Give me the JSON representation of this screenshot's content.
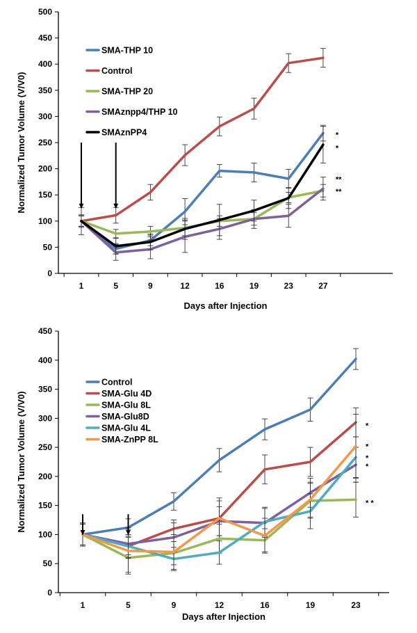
{
  "chart_data": [
    {
      "type": "line",
      "xlabel": "Days after Injection",
      "ylabel": "Normalized Tumor Volume (V/V0)",
      "categories": [
        "1",
        "5",
        "9",
        "12",
        "16",
        "19",
        "23",
        "27"
      ],
      "ylim": [
        0,
        500
      ],
      "yticks": [
        0,
        50,
        100,
        150,
        200,
        250,
        300,
        350,
        400,
        450,
        500
      ],
      "grid": false,
      "legend_position": "upper-left",
      "arrows_at": [
        "1",
        "5"
      ],
      "series": [
        {
          "name": "SMA-THP 10",
          "color": "#4a7ebb",
          "values": [
            100,
            47,
            63,
            118,
            196,
            193,
            181,
            268
          ],
          "errors": [
            10,
            10,
            10,
            25,
            12,
            18,
            18,
            15
          ]
        },
        {
          "name": "Control",
          "color": "#be4b48",
          "values": [
            100,
            111,
            155,
            226,
            281,
            315,
            402,
            412
          ],
          "errors": [
            10,
            15,
            15,
            20,
            18,
            20,
            18,
            18
          ]
        },
        {
          "name": "SMA-THP 20",
          "color": "#98b954",
          "values": [
            100,
            76,
            80,
            87,
            100,
            104,
            145,
            158
          ],
          "errors": [
            10,
            8,
            10,
            15,
            10,
            12,
            10,
            12
          ]
        },
        {
          "name": "SMAznpp4/THP 10",
          "color": "#7d60a0",
          "values": [
            100,
            40,
            46,
            70,
            85,
            104,
            110,
            162
          ],
          "errors": [
            12,
            15,
            18,
            30,
            20,
            18,
            22,
            22
          ]
        },
        {
          "name": "SMAznPP4",
          "color": "#000000",
          "values": [
            100,
            52,
            60,
            85,
            102,
            120,
            144,
            246
          ],
          "errors": [
            26,
            15,
            15,
            20,
            30,
            20,
            20,
            35
          ]
        }
      ],
      "annotations": [
        {
          "text": "*",
          "x": "27",
          "y": 265
        },
        {
          "text": "*",
          "x": "27",
          "y": 240
        },
        {
          "text": "**",
          "x": "27",
          "y": 180
        },
        {
          "text": "**",
          "x": "27",
          "y": 157
        }
      ]
    },
    {
      "type": "line",
      "xlabel": "Days after Injection",
      "ylabel": "Normalized Tumor Volume (V/V0)",
      "categories": [
        "1",
        "5",
        "9",
        "12",
        "16",
        "19",
        "23"
      ],
      "ylim": [
        0,
        450
      ],
      "yticks": [
        0,
        50,
        100,
        150,
        200,
        250,
        300,
        350,
        400,
        450
      ],
      "grid": false,
      "legend_position": "upper-left",
      "arrows_at": [
        "1",
        "5"
      ],
      "series": [
        {
          "name": "Control",
          "color": "#4a7ebb",
          "values": [
            100,
            112,
            157,
            228,
            281,
            315,
            402
          ],
          "errors": [
            18,
            15,
            15,
            20,
            18,
            20,
            18
          ]
        },
        {
          "name": "SMA-Glu 4D",
          "color": "#be4b48",
          "values": [
            100,
            80,
            110,
            128,
            212,
            225,
            293
          ],
          "errors": [
            18,
            15,
            15,
            35,
            25,
            25,
            25
          ]
        },
        {
          "name": "SMA-Glu 8L",
          "color": "#98b954",
          "values": [
            100,
            60,
            68,
            93,
            90,
            158,
            160
          ],
          "errors": [
            18,
            25,
            20,
            25,
            20,
            30,
            30
          ]
        },
        {
          "name": "SMA-Glu8D",
          "color": "#7d60a0",
          "values": [
            100,
            84,
            95,
            123,
            120,
            172,
            220
          ],
          "errors": [
            18,
            25,
            25,
            25,
            25,
            25,
            30
          ]
        },
        {
          "name": "SMA-Glu 4L",
          "color": "#4bacc6",
          "values": [
            100,
            80,
            58,
            69,
            122,
            140,
            233
          ],
          "errors": [
            18,
            20,
            20,
            20,
            25,
            30,
            35
          ]
        },
        {
          "name": "SMA-ZnPP 8L",
          "color": "#f79646",
          "values": [
            100,
            72,
            70,
            128,
            98,
            160,
            252
          ],
          "errors": [
            20,
            40,
            30,
            30,
            30,
            30,
            55
          ]
        }
      ],
      "annotations": [
        {
          "text": "*",
          "x": "23",
          "y": 288
        },
        {
          "text": "*",
          "x": "23",
          "y": 252
        },
        {
          "text": "*",
          "x": "23",
          "y": 232
        },
        {
          "text": "*",
          "x": "23",
          "y": 218
        },
        {
          "text": "* *",
          "x": "23",
          "y": 155
        }
      ]
    }
  ]
}
